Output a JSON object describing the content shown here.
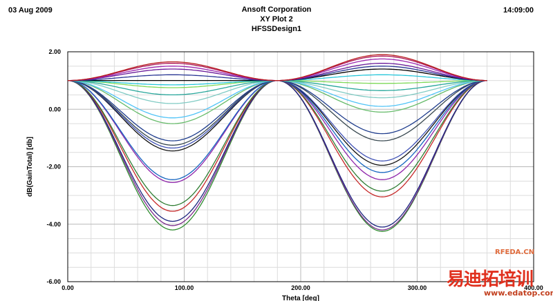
{
  "header": {
    "date": "03 Aug 2009",
    "company": "Ansoft Corporation",
    "plot_name": "XY Plot 2",
    "design_name": "HFSSDesign1",
    "time": "14:09:00"
  },
  "watermark": {
    "brand": "RFEDA.CN",
    "site_name": "易迪拓培训",
    "url": "www.edatop.com"
  },
  "chart_data": {
    "type": "line",
    "title": "",
    "xlabel": "Theta [deg]",
    "ylabel": "dB(GainTotal) [db]",
    "xlim": [
      0,
      400
    ],
    "ylim": [
      -6,
      2
    ],
    "x_ticks": [
      "0.00",
      "100.00",
      "200.00",
      "300.00",
      "400.00"
    ],
    "y_ticks": [
      "2.00",
      "0.00",
      "-2.00",
      "-4.00",
      "-6.00"
    ],
    "grid": true,
    "legend": "none",
    "x_start": 0,
    "x_node": 180,
    "x_end": 360,
    "y_node": 1.0,
    "series": [
      {
        "color": "#2e8b2e",
        "min1": -4.2,
        "min2": -4.25
      },
      {
        "color": "#7b2b8c",
        "min1": -4.05,
        "min2": -4.2
      },
      {
        "color": "#1a237e",
        "min1": -3.9,
        "min2": -4.1
      },
      {
        "color": "#c62828",
        "min1": -3.55,
        "min2": -3.05
      },
      {
        "color": "#2e7d32",
        "min1": -3.35,
        "min2": -2.85
      },
      {
        "color": "#8e24aa",
        "min1": -2.55,
        "min2": -2.45
      },
      {
        "color": "#1565c0",
        "min1": -2.45,
        "min2": -2.2
      },
      {
        "color": "#111111",
        "min1": -1.45,
        "min2": -1.95
      },
      {
        "color": "#3f51b5",
        "min1": -1.35,
        "min2": -1.8
      },
      {
        "color": "#37474f",
        "min1": -1.25,
        "min2": -1.1
      },
      {
        "color": "#1e3c8c",
        "min1": -1.1,
        "min2": -0.85
      },
      {
        "color": "#66bb6a",
        "min1": -0.5,
        "min2": -0.1
      },
      {
        "color": "#4fc3f7",
        "min1": -0.3,
        "min2": 0.1
      },
      {
        "color": "#80cbc4",
        "min1": 0.2,
        "min2": 0.4
      },
      {
        "color": "#26a69a",
        "min1": 0.5,
        "min2": 0.65
      },
      {
        "color": "#7ed957",
        "min1": 0.75,
        "min2": 0.9
      },
      {
        "color": "#26c6da",
        "min1": 0.85,
        "min2": 1.2
      },
      {
        "color": "#000000",
        "min1": 1.0,
        "min2": 1.4
      },
      {
        "color": "#283593",
        "min1": 1.2,
        "min2": 1.5
      },
      {
        "color": "#6a1b9a",
        "min1": 1.4,
        "min2": 1.6
      },
      {
        "color": "#9c27b0",
        "min1": 1.5,
        "min2": 1.75
      },
      {
        "color": "#ad1457",
        "min1": 1.6,
        "min2": 1.85
      },
      {
        "color": "#b71c1c",
        "min1": 1.65,
        "min2": 1.9
      }
    ]
  }
}
